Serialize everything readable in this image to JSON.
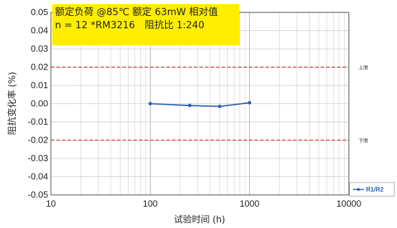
{
  "chart_data": {
    "type": "line",
    "title_lines": [
      "额定负荷 @85℃ 额定 63mW 相对值",
      "n = 12 *RM3216　阻抗比 1:240"
    ],
    "xlabel": "试验时间 (h)",
    "ylabel": "阻抗变化率 (%)",
    "x_scale": "log",
    "xlim": [
      10,
      10000
    ],
    "ylim": [
      -0.05,
      0.05
    ],
    "x_ticks": [
      10,
      100,
      1000,
      10000
    ],
    "x_tick_labels": [
      "10",
      "100",
      "1000",
      "10000"
    ],
    "y_ticks": [
      -0.05,
      -0.04,
      -0.03,
      -0.02,
      -0.01,
      0.0,
      0.01,
      0.02,
      0.03,
      0.04,
      0.05
    ],
    "y_tick_labels": [
      "-0.05",
      "-0.04",
      "-0.03",
      "-0.02",
      "-0.01",
      "0.00",
      "0.01",
      "0.02",
      "0.03",
      "0.04",
      "0.05"
    ],
    "grid": true,
    "series": [
      {
        "name": "R1/R2",
        "color": "#2b5fb0",
        "x": [
          100,
          250,
          500,
          1000
        ],
        "y": [
          0.0,
          -0.001,
          -0.0015,
          0.0005
        ]
      }
    ],
    "limits": [
      {
        "label": "上限",
        "value": 0.02,
        "color": "#d94a3a"
      },
      {
        "label": "下限",
        "value": -0.02,
        "color": "#d94a3a"
      }
    ],
    "legend_position": "bottom-right"
  }
}
